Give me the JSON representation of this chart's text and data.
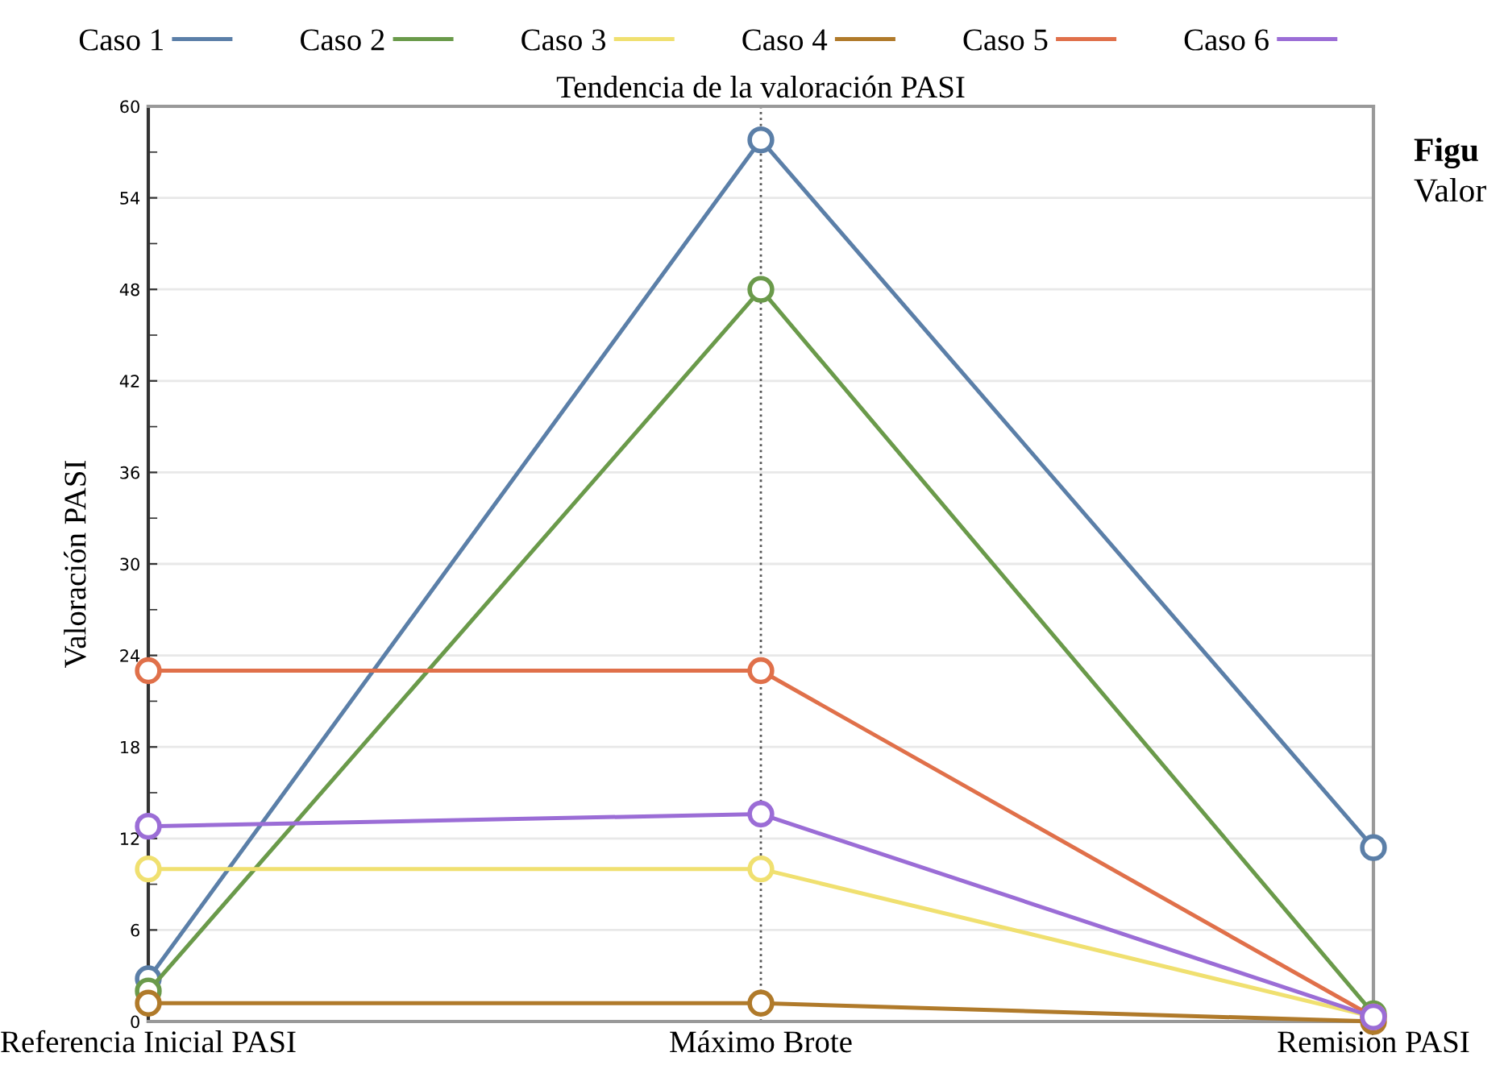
{
  "chart_data": {
    "type": "line",
    "title": "Tendencia de la valoración PASI",
    "ylabel": "Valoración PASI",
    "categories": [
      "Referencia Inicial PASI",
      "Máximo Brote",
      "Remisión PASI"
    ],
    "series": [
      {
        "name": "Caso 1",
        "color": "#5b7fa8",
        "values": [
          2.8,
          57.8,
          11.4
        ]
      },
      {
        "name": "Caso 2",
        "color": "#6a9a4a",
        "values": [
          2.0,
          48,
          0.5
        ]
      },
      {
        "name": "Caso 3",
        "color": "#f0e070",
        "values": [
          10,
          10,
          0.3
        ]
      },
      {
        "name": "Caso 4",
        "color": "#b07a2a",
        "values": [
          1.2,
          1.2,
          0
        ]
      },
      {
        "name": "Caso 5",
        "color": "#e0704a",
        "values": [
          23,
          23,
          0.3
        ]
      },
      {
        "name": "Caso 6",
        "color": "#9b6dd6",
        "values": [
          12.8,
          13.6,
          0.3
        ]
      }
    ],
    "ylim": [
      0,
      60
    ],
    "yticks": [
      0,
      6,
      12,
      18,
      24,
      30,
      36,
      42,
      48,
      54,
      60
    ],
    "ref_lines": [
      {
        "axis": "x",
        "value": "Máximo Brote",
        "color": "#555555",
        "line_style": "dotted"
      }
    ],
    "annotations": [
      "Figu",
      "Valor"
    ],
    "grid": "y",
    "legend": "top",
    "marker": "circle",
    "line_style": "solid"
  }
}
